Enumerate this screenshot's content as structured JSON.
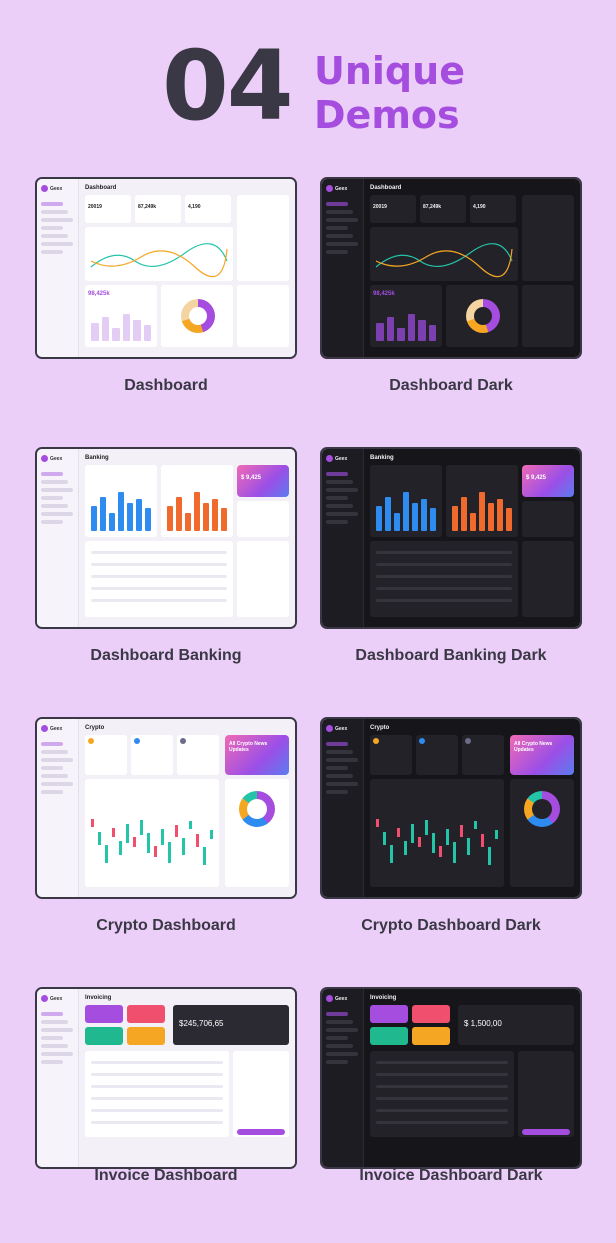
{
  "hero": {
    "number": "04",
    "line1": "Unique",
    "line2": "Demos"
  },
  "demos": [
    {
      "caption": "Dashboard",
      "title": "Dashboard",
      "theme": "light",
      "kind": "dashboard"
    },
    {
      "caption": "Dashboard Dark",
      "title": "Dashboard",
      "theme": "dark",
      "kind": "dashboard"
    },
    {
      "caption": "Dashboard Banking",
      "title": "Banking",
      "theme": "light",
      "kind": "banking"
    },
    {
      "caption": "Dashboard Banking Dark",
      "title": "Banking",
      "theme": "dark",
      "kind": "banking"
    },
    {
      "caption": "Crypto Dashboard",
      "title": "Crypto",
      "theme": "light",
      "kind": "crypto"
    },
    {
      "caption": "Crypto Dashboard Dark",
      "title": "Crypto",
      "theme": "dark",
      "kind": "crypto"
    },
    {
      "caption": "Invoice Dashboard",
      "title": "Invoicing",
      "theme": "light",
      "kind": "invoice"
    },
    {
      "caption": "Invoice Dashboard Dark",
      "title": "Invoicing",
      "theme": "dark",
      "kind": "invoice"
    }
  ],
  "mini_text": {
    "logo": "Geex",
    "stats_dashboard": [
      "20019",
      "87,249k",
      "4,190"
    ],
    "visitors": "98,425k",
    "balance": "$ 9,425",
    "crypto_news": "All Crypto News Updates",
    "invoice_total": "$245,706,65",
    "invoice_total_dark": "$ 1,500,00"
  },
  "colors": {
    "background": "#ebcff8",
    "heading_dark": "#3a3845",
    "accent_purple": "#a44ddf"
  }
}
